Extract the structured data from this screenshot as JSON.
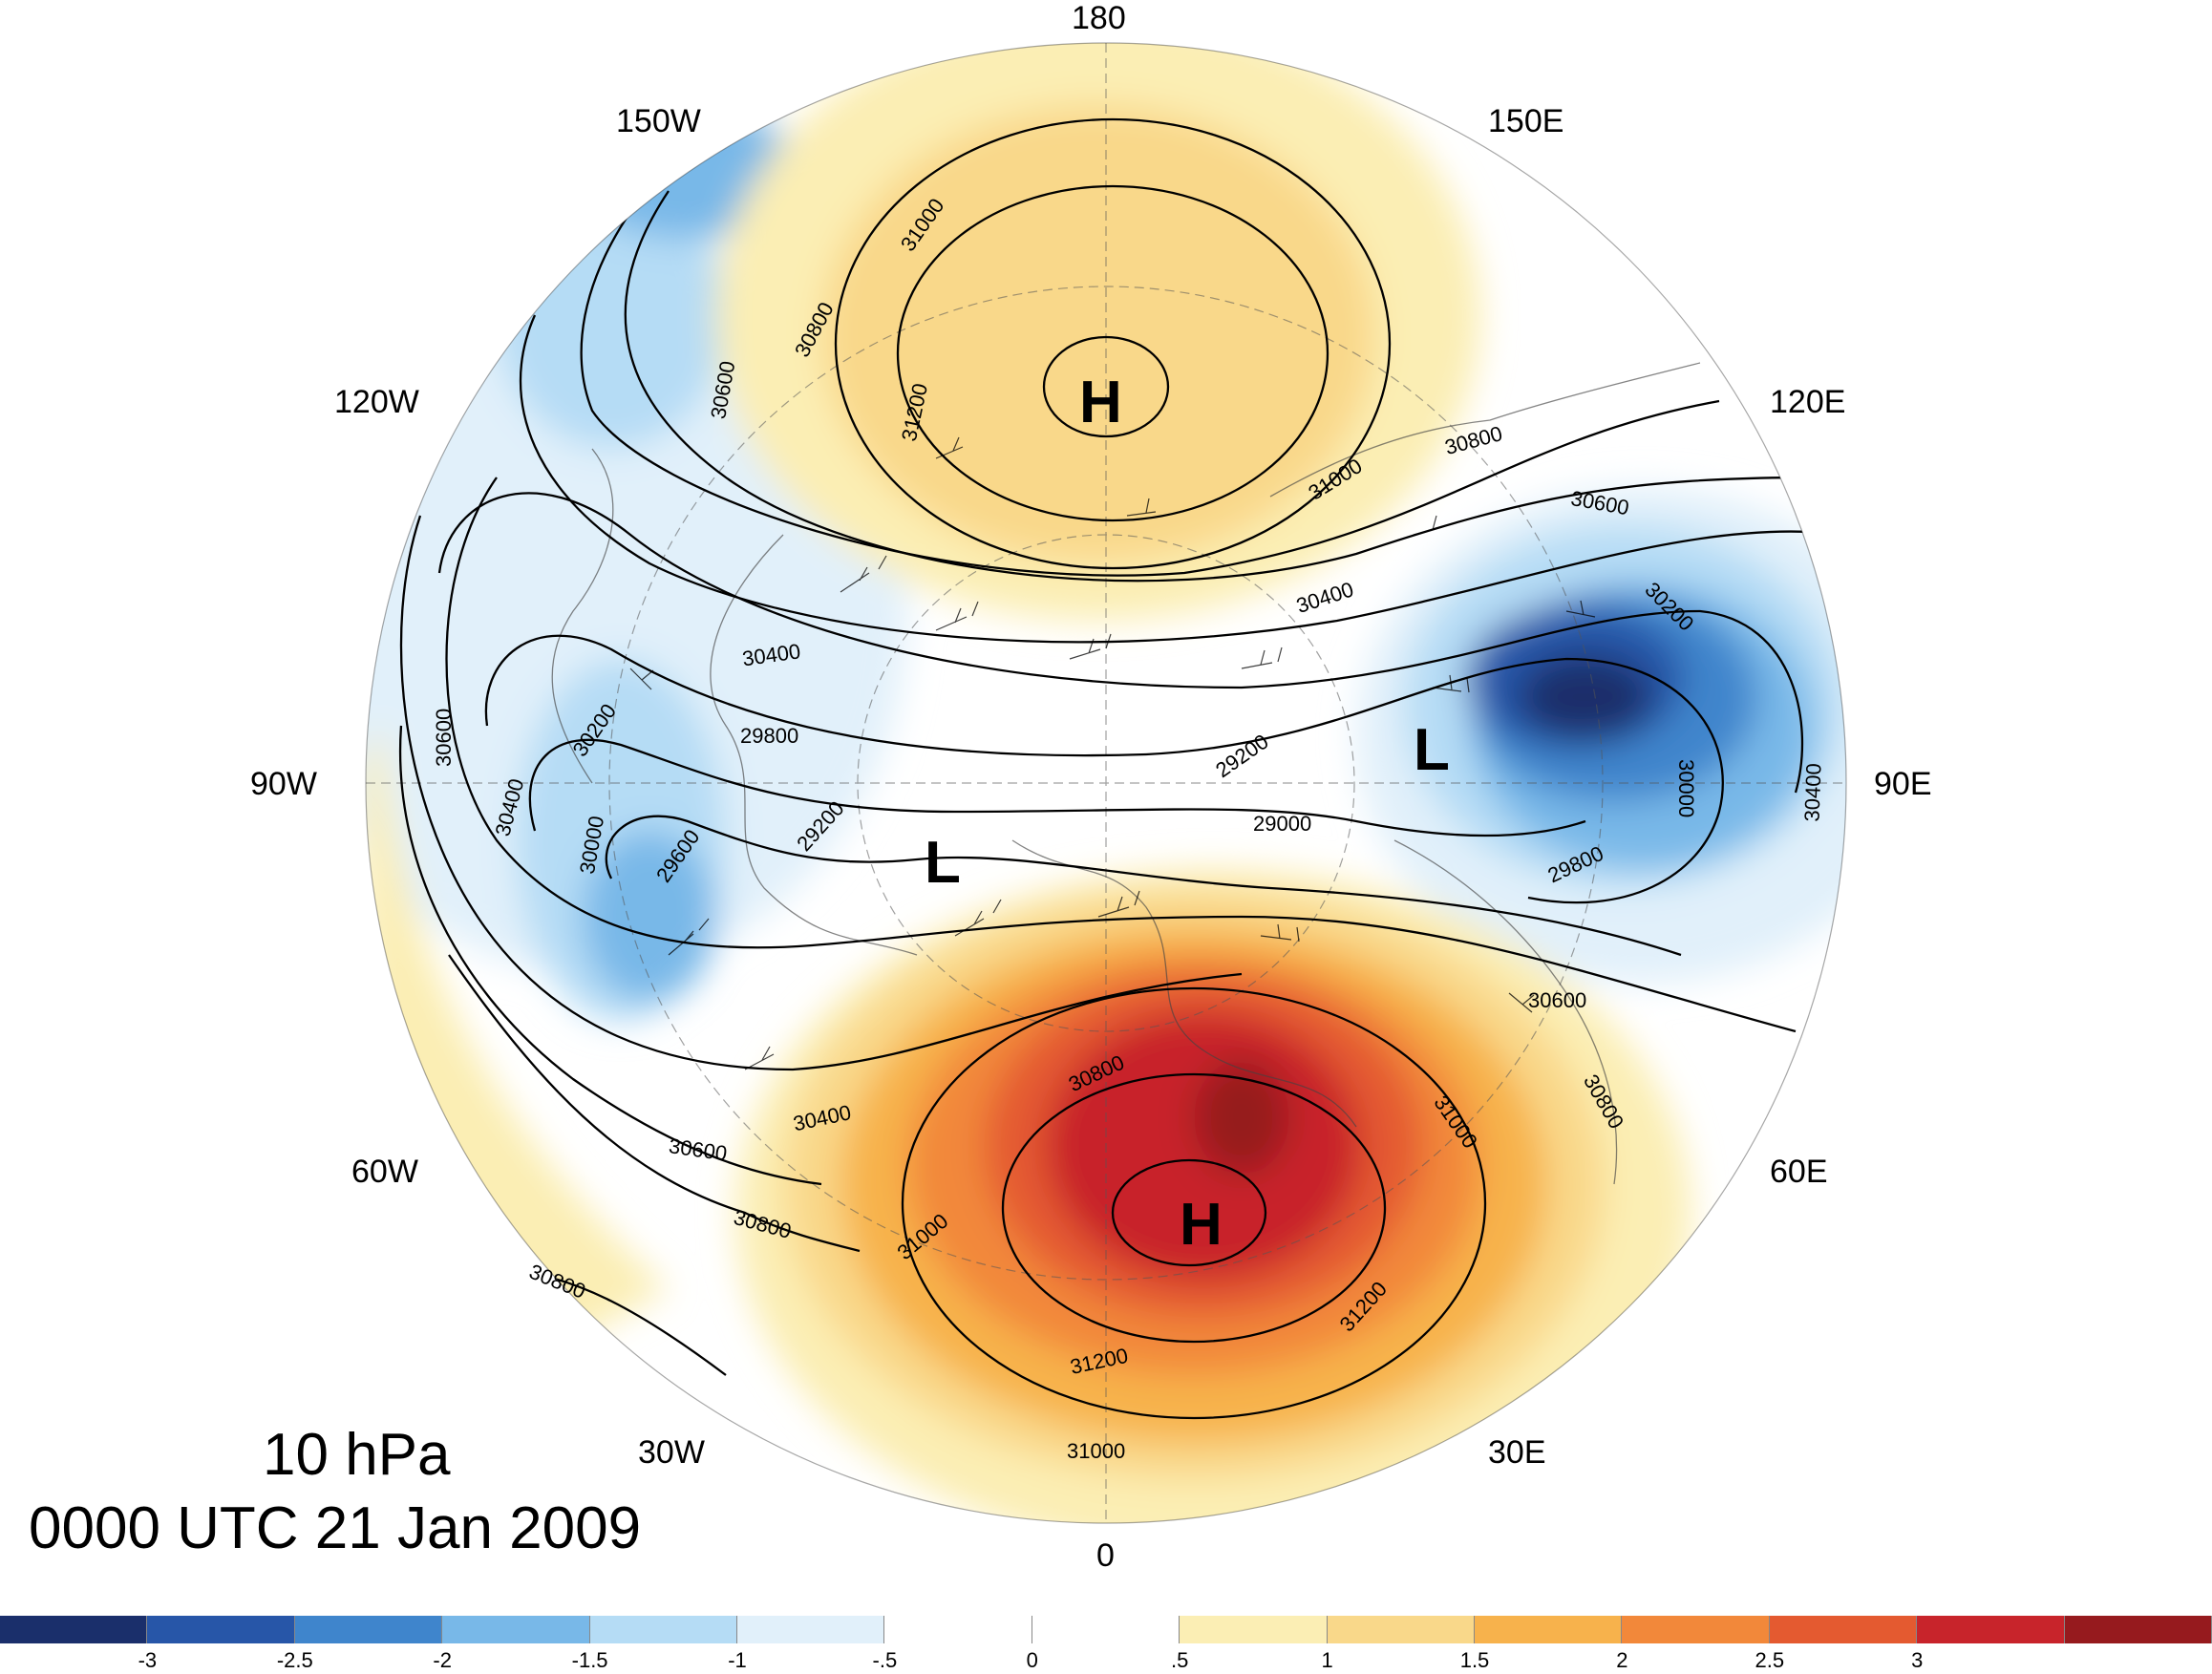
{
  "title": {
    "level": "10 hPa",
    "time": "0000 UTC 21 Jan 2009"
  },
  "longitude_labels": {
    "deg180": "180",
    "w150": "150W",
    "e150": "150E",
    "w120": "120W",
    "e120": "120E",
    "w90": "90W",
    "e90": "90E",
    "w60": "60W",
    "e60": "60E",
    "w30": "30W",
    "e30": "30E",
    "deg0": "0"
  },
  "pressure_centers": {
    "high_pacific": "H",
    "high_europe": "H",
    "low_asia": "L",
    "low_canada": "L"
  },
  "contour_labels": {
    "c31000_a": "31000",
    "c30800_a": "30800",
    "c30600_a": "30600",
    "c31200_a": "31200",
    "c31000_b": "31000",
    "c30800_b": "30800",
    "c30600_b": "30600",
    "c30400_a": "30400",
    "c30400_b": "30400",
    "c30200_a": "30200",
    "c30000_a": "30000",
    "c30400_c": "30400",
    "c29200_a": "29200",
    "c29000_a": "29000",
    "c29800_a": "29800",
    "c30600_c": "30600",
    "c29800_b": "29800",
    "c30200_b": "30200",
    "c30600_d": "30600",
    "c30400_d": "30400",
    "c30000_b": "30000",
    "c29600_a": "29600",
    "c29200_b": "29200",
    "c30800_c": "30800",
    "c31000_c": "31000",
    "c30800_d": "30800",
    "c30400_e": "30400",
    "c30600_e": "30600",
    "c30800_e": "30800",
    "c30800_f": "30800",
    "c31000_d": "31000",
    "c31200_b": "31200",
    "c31200_c": "31200",
    "c31000_e": "31000"
  },
  "colorbar": {
    "colors": [
      "#1a2f6b",
      "#2756a8",
      "#3f85cc",
      "#78b8e8",
      "#b5dcf5",
      "#e1f0fa",
      "#ffffff",
      "#ffffff",
      "#fbeeb4",
      "#f9d88a",
      "#f7b24c",
      "#f2883a",
      "#e45a30",
      "#c8242b",
      "#961a1e"
    ],
    "ticks": [
      "-3",
      "-2.5",
      "-2",
      "-1.5",
      "-1",
      "-.5",
      "0",
      ".5",
      "1",
      "1.5",
      "2",
      "2.5",
      "3"
    ]
  }
}
